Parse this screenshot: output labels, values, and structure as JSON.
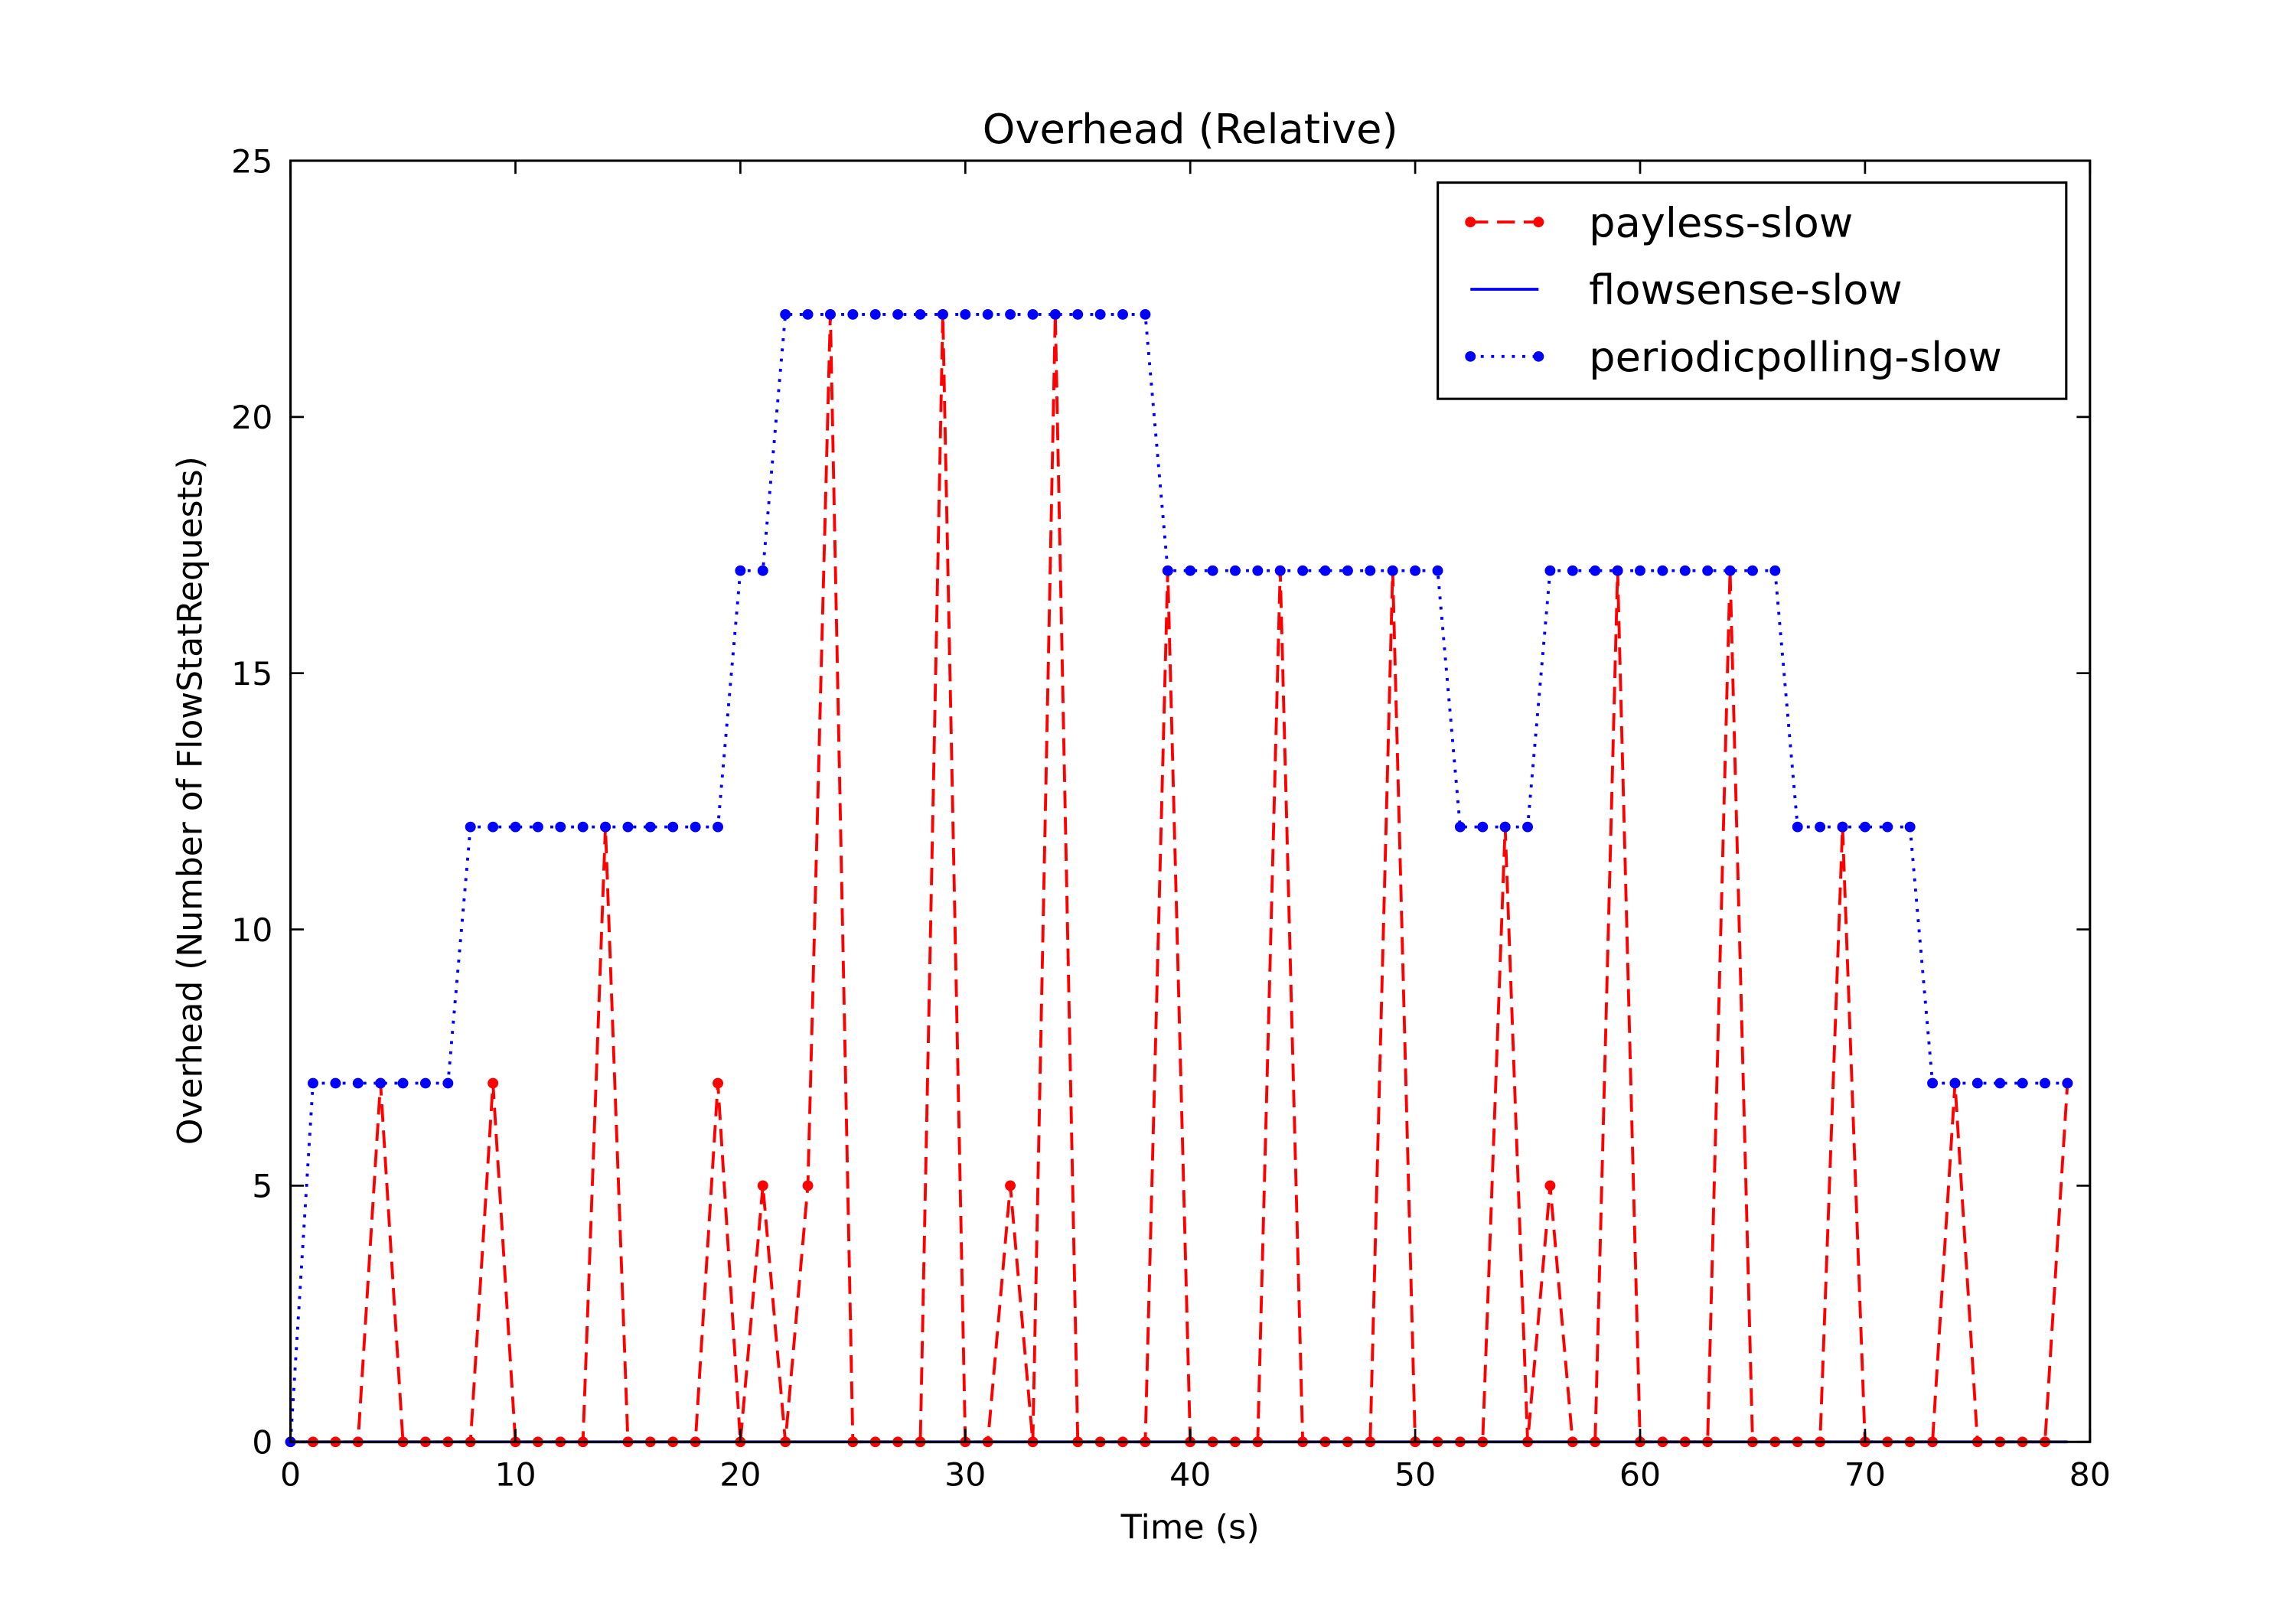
{
  "chart_data": {
    "type": "line",
    "title": "Overhead (Relative)",
    "x_label": "Time (s)",
    "y_label": "Overhead (Number of FlowStatRequests)",
    "x": [
      0,
      1,
      2,
      3,
      4,
      5,
      6,
      7,
      8,
      9,
      10,
      11,
      12,
      13,
      14,
      15,
      16,
      17,
      18,
      19,
      20,
      21,
      22,
      23,
      24,
      25,
      26,
      27,
      28,
      29,
      30,
      31,
      32,
      33,
      34,
      35,
      36,
      37,
      38,
      39,
      40,
      41,
      42,
      43,
      44,
      45,
      46,
      47,
      48,
      49,
      50,
      51,
      52,
      53,
      54,
      55,
      56,
      57,
      58,
      59,
      60,
      61,
      62,
      63,
      64,
      65,
      66,
      67,
      68,
      69,
      70,
      71,
      72,
      73,
      74,
      75,
      76,
      77,
      78,
      79
    ],
    "series": [
      {
        "name": "payless-slow",
        "color": "#ff0000",
        "style": "dashed",
        "marker": true,
        "values": [
          0,
          0,
          0,
          0,
          7,
          0,
          0,
          0,
          0,
          7,
          0,
          0,
          0,
          0,
          12,
          0,
          0,
          0,
          0,
          7,
          0,
          5,
          0,
          5,
          22,
          0,
          0,
          0,
          0,
          22,
          0,
          0,
          5,
          0,
          22,
          0,
          0,
          0,
          0,
          17,
          0,
          0,
          0,
          0,
          17,
          0,
          0,
          0,
          0,
          17,
          0,
          0,
          0,
          0,
          12,
          0,
          5,
          0,
          0,
          17,
          0,
          0,
          0,
          0,
          17,
          0,
          0,
          0,
          0,
          12,
          0,
          0,
          0,
          0,
          7,
          0,
          0,
          0,
          0,
          7
        ]
      },
      {
        "name": "flowsense-slow",
        "color": "#0000ff",
        "style": "solid",
        "marker": false,
        "values": [
          0,
          0,
          0,
          0,
          0,
          0,
          0,
          0,
          0,
          0,
          0,
          0,
          0,
          0,
          0,
          0,
          0,
          0,
          0,
          0,
          0,
          0,
          0,
          0,
          0,
          0,
          0,
          0,
          0,
          0,
          0,
          0,
          0,
          0,
          0,
          0,
          0,
          0,
          0,
          0,
          0,
          0,
          0,
          0,
          0,
          0,
          0,
          0,
          0,
          0,
          0,
          0,
          0,
          0,
          0,
          0,
          0,
          0,
          0,
          0,
          0,
          0,
          0,
          0,
          0,
          0,
          0,
          0,
          0,
          0,
          0,
          0,
          0,
          0,
          0,
          0,
          0,
          0,
          0,
          0
        ]
      },
      {
        "name": "periodicpolling-slow",
        "color": "#0000ff",
        "style": "dotted",
        "marker": true,
        "values": [
          0,
          7,
          7,
          7,
          7,
          7,
          7,
          7,
          12,
          12,
          12,
          12,
          12,
          12,
          12,
          12,
          12,
          12,
          12,
          12,
          17,
          17,
          22,
          22,
          22,
          22,
          22,
          22,
          22,
          22,
          22,
          22,
          22,
          22,
          22,
          22,
          22,
          22,
          22,
          17,
          17,
          17,
          17,
          17,
          17,
          17,
          17,
          17,
          17,
          17,
          17,
          17,
          12,
          12,
          12,
          12,
          17,
          17,
          17,
          17,
          17,
          17,
          17,
          17,
          17,
          17,
          17,
          12,
          12,
          12,
          12,
          12,
          12,
          7,
          7,
          7,
          7,
          7,
          7,
          7
        ]
      }
    ],
    "xlim": [
      0,
      80
    ],
    "xticks": [
      0,
      10,
      20,
      30,
      40,
      50,
      60,
      70,
      80
    ],
    "ylim": [
      0,
      25
    ],
    "yticks": [
      0,
      5,
      10,
      15,
      20,
      25
    ],
    "legend": "upper right"
  }
}
